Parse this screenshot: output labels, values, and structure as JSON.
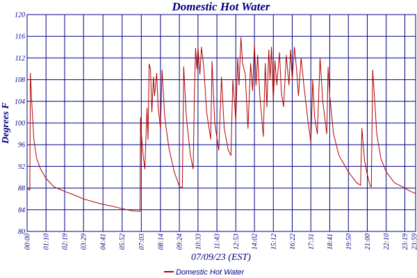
{
  "chart_data": {
    "type": "line",
    "title": "Domestic Hot Water",
    "xlabel": "07/09/23 (EST)",
    "ylabel": "Degrees F",
    "ylim": [
      80,
      120
    ],
    "yticks": [
      80,
      84,
      88,
      92,
      96,
      100,
      104,
      108,
      112,
      116,
      120
    ],
    "ytick_labels": [
      "80",
      "84",
      "88",
      "92",
      "96",
      "100",
      "104",
      "108",
      "112",
      "116",
      "120"
    ],
    "xticks": [
      "00:00",
      "01:10",
      "02:19",
      "03:29",
      "04:41",
      "05:52",
      "07:03",
      "08:14",
      "09:24",
      "10:33",
      "11:43",
      "12:53",
      "14:02",
      "15:12",
      "16:22",
      "17:31",
      "18:41",
      "19:50",
      "21:00",
      "22:10",
      "23:19",
      "23:59"
    ],
    "grid": true,
    "legend": {
      "position": "bottom",
      "entries": [
        "Domestic Hot Water"
      ]
    },
    "series": [
      {
        "name": "Domestic Hot Water",
        "color": "#b00000",
        "points": [
          [
            "00:00",
            88.0
          ],
          [
            "00:10",
            87.6
          ],
          [
            "00:12",
            109.2
          ],
          [
            "00:18",
            103
          ],
          [
            "00:25",
            97
          ],
          [
            "00:35",
            93.5
          ],
          [
            "00:50",
            91.5
          ],
          [
            "01:10",
            89.8
          ],
          [
            "01:40",
            88.2
          ],
          [
            "02:19",
            87.4
          ],
          [
            "03:00",
            86.6
          ],
          [
            "03:29",
            86.0
          ],
          [
            "04:10",
            85.4
          ],
          [
            "04:41",
            85.0
          ],
          [
            "05:20",
            84.6
          ],
          [
            "05:52",
            84.2
          ],
          [
            "06:30",
            83.8
          ],
          [
            "06:58",
            83.7
          ],
          [
            "07:00",
            101.0
          ],
          [
            "07:04",
            97.5
          ],
          [
            "07:10",
            94.0
          ],
          [
            "07:16",
            91.5
          ],
          [
            "07:24",
            102.8
          ],
          [
            "07:28",
            97.0
          ],
          [
            "07:32",
            110.9
          ],
          [
            "07:37",
            110.0
          ],
          [
            "07:42",
            102.0
          ],
          [
            "07:48",
            108.5
          ],
          [
            "07:52",
            105.0
          ],
          [
            "08:00",
            109.2
          ],
          [
            "08:05",
            103.0
          ],
          [
            "08:14",
            99.0
          ],
          [
            "08:20",
            109.8
          ],
          [
            "08:30",
            101.0
          ],
          [
            "08:45",
            95.5
          ],
          [
            "09:05",
            91.0
          ],
          [
            "09:24",
            88.3
          ],
          [
            "09:35",
            88.0
          ],
          [
            "09:40",
            110.4
          ],
          [
            "09:50",
            101.0
          ],
          [
            "10:05",
            94.0
          ],
          [
            "10:15",
            91.5
          ],
          [
            "10:20",
            106.0
          ],
          [
            "10:24",
            113.8
          ],
          [
            "10:29",
            110.0
          ],
          [
            "10:33",
            113.9
          ],
          [
            "10:40",
            109.0
          ],
          [
            "10:46",
            114.0
          ],
          [
            "10:55",
            110.0
          ],
          [
            "11:05",
            102.0
          ],
          [
            "11:20",
            97.0
          ],
          [
            "11:25",
            111.4
          ],
          [
            "11:35",
            100.0
          ],
          [
            "11:50",
            95.0
          ],
          [
            "12:00",
            108.5
          ],
          [
            "12:10",
            99.0
          ],
          [
            "12:25",
            95.0
          ],
          [
            "12:35",
            94.0
          ],
          [
            "12:42",
            108.0
          ],
          [
            "12:53",
            100.5
          ],
          [
            "13:00",
            112.0
          ],
          [
            "13:05",
            107.0
          ],
          [
            "13:12",
            115.8
          ],
          [
            "13:18",
            111.0
          ],
          [
            "13:28",
            109.0
          ],
          [
            "13:38",
            99.0
          ],
          [
            "13:48",
            111.0
          ],
          [
            "13:55",
            106.0
          ],
          [
            "14:02",
            114.5
          ],
          [
            "14:08",
            107.0
          ],
          [
            "14:14",
            112.5
          ],
          [
            "14:22",
            105.0
          ],
          [
            "14:35",
            97.5
          ],
          [
            "14:42",
            111.0
          ],
          [
            "14:48",
            103.0
          ],
          [
            "14:55",
            113.5
          ],
          [
            "15:00",
            108.0
          ],
          [
            "15:05",
            114.0
          ],
          [
            "15:12",
            104.0
          ],
          [
            "15:18",
            111.5
          ],
          [
            "15:25",
            107.0
          ],
          [
            "15:35",
            113.0
          ],
          [
            "15:42",
            105.5
          ],
          [
            "15:50",
            103.0
          ],
          [
            "16:00",
            112.5
          ],
          [
            "16:10",
            107.0
          ],
          [
            "16:16",
            113.5
          ],
          [
            "16:22",
            108.0
          ],
          [
            "16:30",
            114.0
          ],
          [
            "16:38",
            110.0
          ],
          [
            "16:45",
            105.0
          ],
          [
            "16:55",
            112.0
          ],
          [
            "17:05",
            107.0
          ],
          [
            "17:20",
            100.5
          ],
          [
            "17:31",
            96.5
          ],
          [
            "17:38",
            108.0
          ],
          [
            "17:45",
            101.0
          ],
          [
            "17:55",
            98.0
          ],
          [
            "18:05",
            112.0
          ],
          [
            "18:15",
            104.0
          ],
          [
            "18:30",
            98.0
          ],
          [
            "18:35",
            110.3
          ],
          [
            "18:41",
            105.0
          ],
          [
            "18:55",
            98.0
          ],
          [
            "19:15",
            94.0
          ],
          [
            "19:50",
            91.0
          ],
          [
            "20:20",
            89.0
          ],
          [
            "20:35",
            88.5
          ],
          [
            "20:40",
            99.0
          ],
          [
            "20:50",
            93.0
          ],
          [
            "21:00",
            90.5
          ],
          [
            "21:10",
            88.5
          ],
          [
            "21:15",
            88.2
          ],
          [
            "21:20",
            109.8
          ],
          [
            "21:25",
            106.0
          ],
          [
            "21:35",
            98.0
          ],
          [
            "21:50",
            93.5
          ],
          [
            "22:10",
            91.0
          ],
          [
            "22:40",
            89.0
          ],
          [
            "23:19",
            88.0
          ],
          [
            "23:40",
            87.4
          ],
          [
            "23:59",
            87.0
          ]
        ]
      }
    ]
  }
}
